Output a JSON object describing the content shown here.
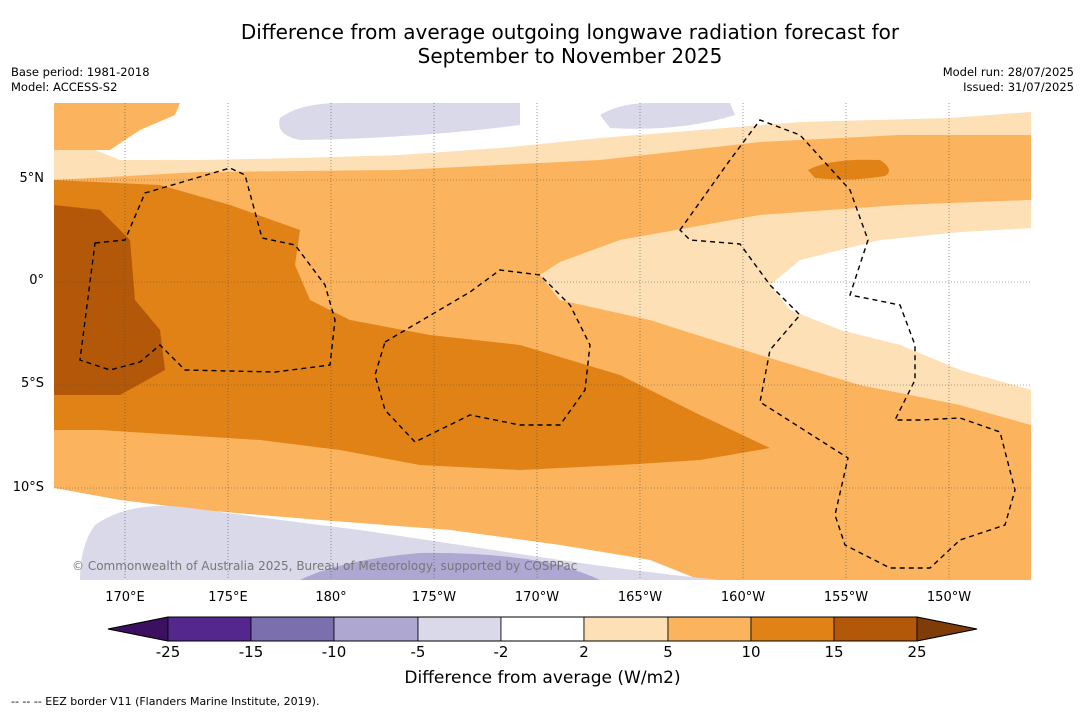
{
  "title_line1": "Difference from average outgoing longwave radiation forecast for",
  "title_line2": "September to November 2025",
  "meta_left": [
    "Base period: 1981-2018",
    "Model: ACCESS-S2"
  ],
  "meta_right": [
    "Model run: 28/07/2025",
    "Issued: 31/07/2025"
  ],
  "lat_labels": [
    "5°N",
    "0°",
    "5°S",
    "10°S"
  ],
  "lon_labels": [
    "170°E",
    "175°E",
    "180°",
    "175°W",
    "170°W",
    "165°W",
    "160°W",
    "155°W",
    "150°W"
  ],
  "copyright": "© Commonwealth of Australia 2025, Bureau of Meteorology, supported by COSPPac",
  "colorbar": {
    "ticks": [
      "-25",
      "-15",
      "-10",
      "-5",
      "-2",
      "2",
      "5",
      "10",
      "15",
      "25"
    ],
    "colors": [
      "#3c1060",
      "#54278f",
      "#7c6fae",
      "#ada7d2",
      "#d9d9ea",
      "#ffffff",
      "#fde0b5",
      "#fbb35d",
      "#e08216",
      "#b35808",
      "#7f3b08"
    ],
    "title": "Difference from average (W/m2)"
  },
  "footnote": "--  --  -- EEZ border V11 (Flanders Marine Institute, 2019)."
}
